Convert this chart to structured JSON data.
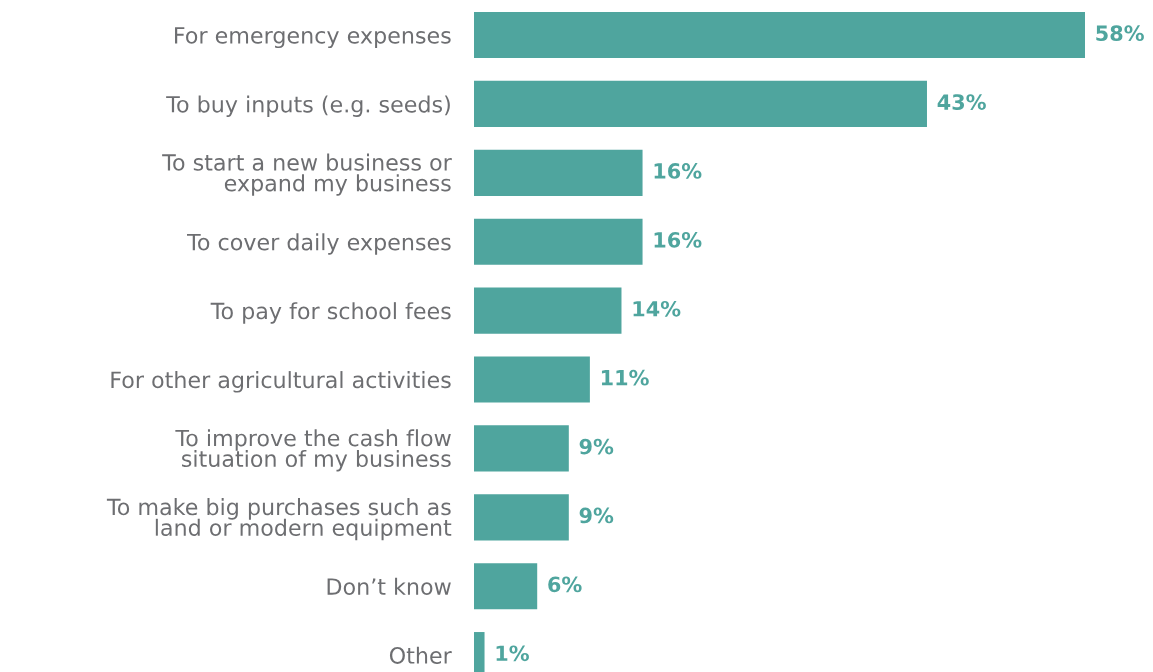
{
  "chart_data": {
    "type": "bar",
    "orientation": "horizontal",
    "categories": [
      "For emergency expenses",
      "To buy inputs (e.g. seeds)",
      "To start a new business or\nexpand my business",
      "To cover daily expenses",
      "To pay for school fees",
      "For other agricultural activities",
      "To improve the cash flow\nsituation of my business",
      "To make big purchases such as\nland or modern equipment",
      "Don’t know",
      "Other"
    ],
    "values": [
      58,
      43,
      16,
      16,
      14,
      11,
      9,
      9,
      6,
      1
    ],
    "value_labels": [
      "58%",
      "43%",
      "16%",
      "16%",
      "14%",
      "11%",
      "9%",
      "9%",
      "6%",
      "1%"
    ],
    "color": "#4fa59e",
    "grid": false,
    "legend": false
  }
}
